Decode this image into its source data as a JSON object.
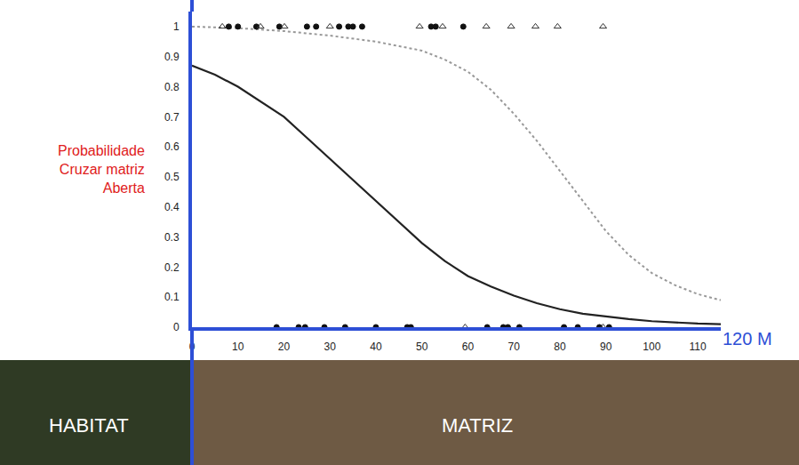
{
  "chart_data": {
    "type": "scatter",
    "ylabel": [
      "Probabilidade",
      "Cruzar matriz",
      "Aberta"
    ],
    "axis_end_label": "120 M",
    "region_labels": [
      "HABITAT",
      "MATRIZ"
    ],
    "xlim": [
      0,
      115
    ],
    "xticks": [
      0,
      10,
      20,
      30,
      40,
      50,
      60,
      70,
      80,
      90,
      100,
      110
    ],
    "ylim": [
      0,
      1.05
    ],
    "yticks": [
      0,
      0.1,
      0.2,
      0.3,
      0.4,
      0.5,
      0.6,
      0.7,
      0.8,
      0.9,
      1
    ],
    "grid": false,
    "series": [
      {
        "type": "line",
        "line_style": "solid",
        "color": "#222222",
        "x": [
          0,
          5,
          10,
          15,
          20,
          25,
          30,
          35,
          40,
          45,
          50,
          55,
          60,
          65,
          70,
          75,
          80,
          85,
          90,
          95,
          100,
          105,
          110,
          115
        ],
        "values": [
          0.87,
          0.84,
          0.8,
          0.75,
          0.7,
          0.63,
          0.56,
          0.49,
          0.42,
          0.35,
          0.28,
          0.22,
          0.17,
          0.135,
          0.105,
          0.08,
          0.06,
          0.045,
          0.035,
          0.027,
          0.02,
          0.015,
          0.012,
          0.01
        ]
      },
      {
        "type": "line",
        "line_style": "dotted",
        "color": "#999999",
        "x": [
          0,
          10,
          20,
          30,
          40,
          50,
          55,
          60,
          65,
          70,
          75,
          80,
          85,
          90,
          95,
          100,
          105,
          110,
          115
        ],
        "values": [
          1.0,
          0.995,
          0.985,
          0.97,
          0.95,
          0.92,
          0.89,
          0.85,
          0.79,
          0.71,
          0.62,
          0.52,
          0.42,
          0.32,
          0.24,
          0.18,
          0.14,
          0.11,
          0.09
        ]
      },
      {
        "type": "scatter",
        "marker": "circle",
        "color": "#111111",
        "x": [
          8,
          10,
          14,
          19,
          25,
          27,
          32,
          34,
          35,
          37,
          52,
          53,
          59
        ],
        "values": [
          1,
          1,
          1,
          1,
          1,
          1,
          1,
          1,
          1,
          1,
          1,
          1,
          1
        ]
      },
      {
        "type": "scatter",
        "marker": "triangle",
        "color": "#333333",
        "x": [
          6.6,
          14.9,
          20.1,
          30,
          49.5,
          54.5,
          64,
          69.4,
          74.7,
          79.5,
          89.4
        ],
        "values": [
          1,
          1,
          1,
          1,
          1,
          1,
          1,
          1,
          1,
          1,
          1
        ]
      },
      {
        "type": "scatter",
        "marker": "circle",
        "color": "#111111",
        "x": [
          18.4,
          23.2,
          24.6,
          28.8,
          33.3,
          40,
          46.8,
          47.6,
          64.2,
          67.7,
          68.7,
          71.2,
          80.9,
          83.9,
          88.6,
          90.7
        ],
        "values": [
          0,
          0,
          0,
          0,
          0,
          0,
          0,
          0,
          0,
          0,
          0,
          0,
          0,
          0,
          0,
          0
        ]
      },
      {
        "type": "scatter",
        "marker": "triangle",
        "color": "#333333",
        "x": [
          59.4,
          89.4
        ],
        "values": [
          0,
          0
        ]
      }
    ]
  }
}
